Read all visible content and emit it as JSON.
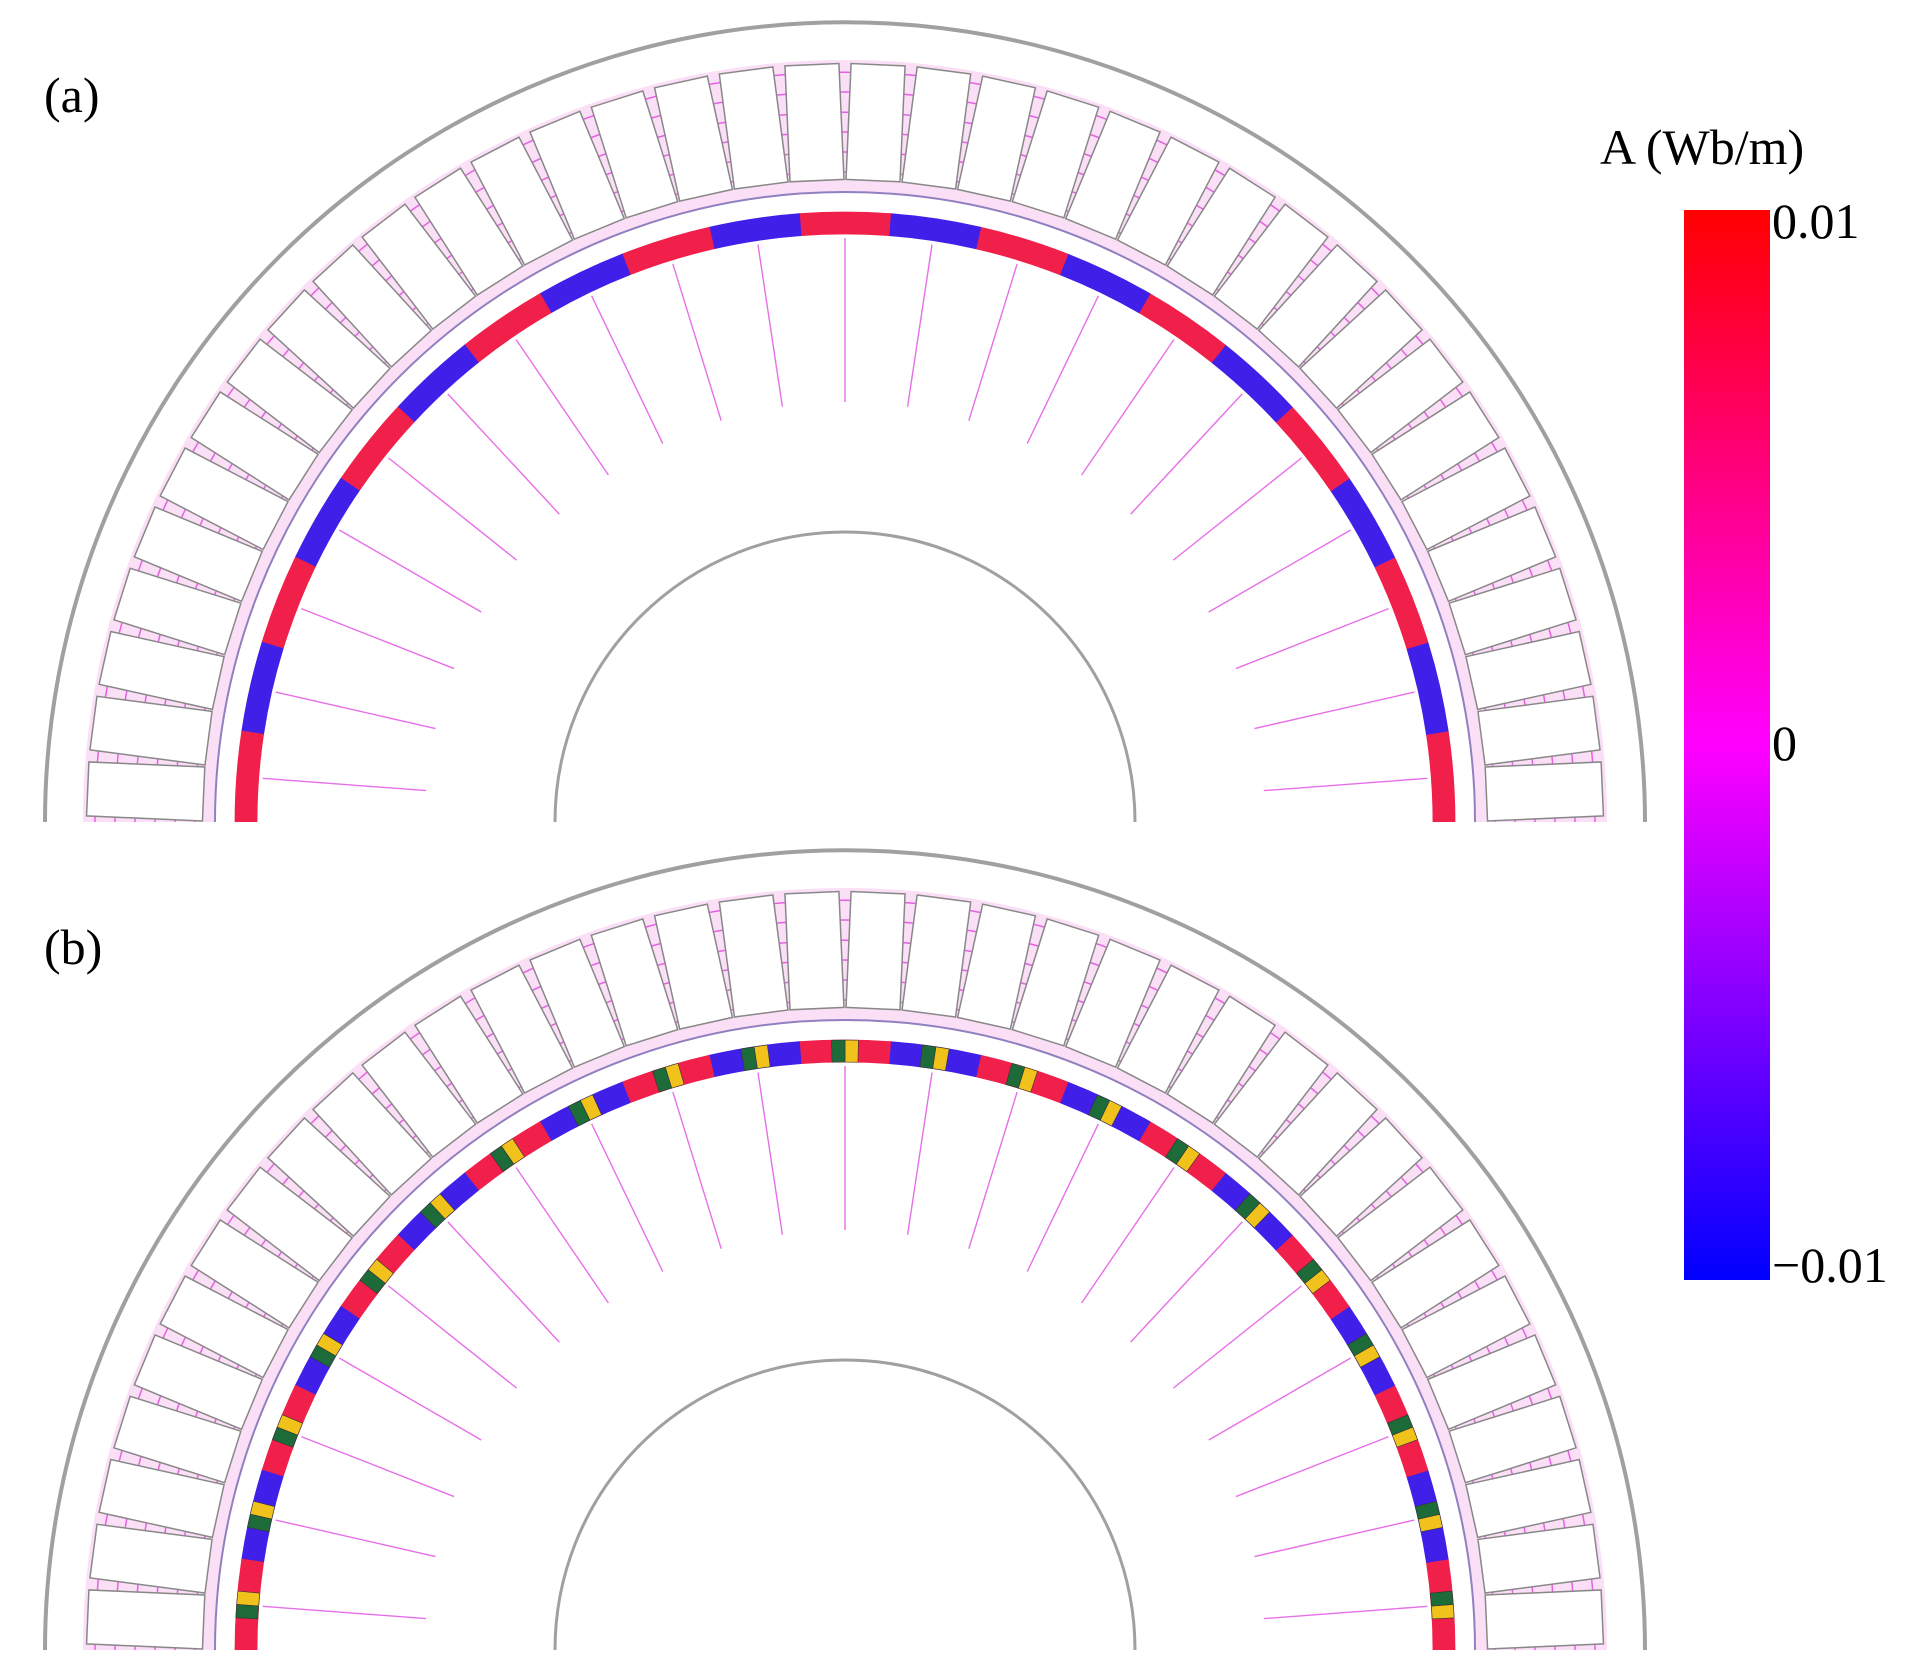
{
  "panels": [
    {
      "label": "(a)",
      "magnets": [
        "r",
        "b",
        "r",
        "b",
        "r",
        "b",
        "r",
        "b",
        "r",
        "b",
        "r",
        "b",
        "r",
        "b",
        "r",
        "b",
        "r",
        "b",
        "r",
        "b",
        "r"
      ]
    },
    {
      "label": "(b)",
      "magnets": [
        "r",
        "b",
        "r",
        "b",
        "r",
        "b",
        "r",
        "b",
        "r",
        "b",
        "r",
        "b",
        "r",
        "b",
        "r",
        "b",
        "r",
        "b",
        "r",
        "b",
        "r"
      ]
    }
  ],
  "colorbar": {
    "title": "A (Wb/m)",
    "max_label": "0.01",
    "mid_label": "0",
    "min_label": "−0.01",
    "colors": {
      "high": "#ff0000",
      "mid": "#ff00ff",
      "low": "#0000ff"
    }
  },
  "colors": {
    "outline": "#a0a0a0",
    "flux_line": "#e040e0",
    "magnet_red": "#f0204a",
    "magnet_blue": "#4020e8",
    "segment_green": "#1e6b3a",
    "segment_yellow": "#f2c21c",
    "stator_tint": "#f7b8ec"
  }
}
